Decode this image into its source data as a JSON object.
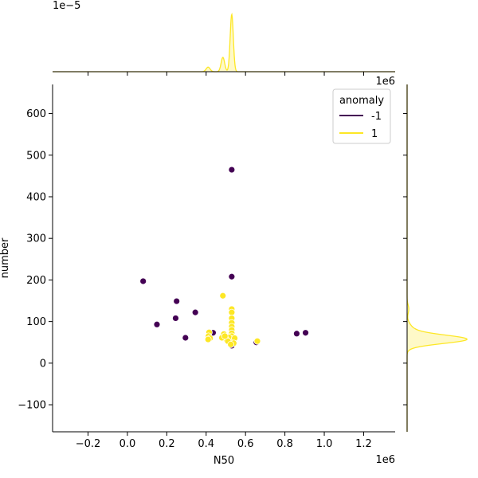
{
  "chart_data": {
    "type": "scatter",
    "title": "",
    "xlabel": "N50",
    "ylabel": "number",
    "x_offset_label": "1e6",
    "top_marginal_offset_label": "1e−5",
    "right_marginal_offset_label": "1e6",
    "xlim": [
      -380000,
      1360000
    ],
    "ylim": [
      -165,
      670
    ],
    "xticks": [
      -0.2,
      0.0,
      0.2,
      0.4,
      0.6,
      0.8,
      1.0,
      1.2
    ],
    "xtick_labels": [
      "−0.2",
      "0.0",
      "0.2",
      "0.4",
      "0.6",
      "0.8",
      "1.0",
      "1.2"
    ],
    "yticks": [
      -100,
      0,
      100,
      200,
      300,
      400,
      500,
      600
    ],
    "ytick_labels": [
      "−100",
      "0",
      "100",
      "200",
      "300",
      "400",
      "500",
      "600"
    ],
    "grid": false,
    "legend": {
      "title": "anomaly",
      "location": "upper right",
      "entries": [
        {
          "label": "-1",
          "color": "#440154"
        },
        {
          "label": "1",
          "color": "#fde725"
        }
      ]
    },
    "series": [
      {
        "name": "-1",
        "color": "#440154",
        "points": [
          [
            80000,
            197
          ],
          [
            150000,
            93
          ],
          [
            245000,
            108
          ],
          [
            250000,
            149
          ],
          [
            295000,
            61
          ],
          [
            345000,
            122
          ],
          [
            435000,
            73
          ],
          [
            530000,
            465
          ],
          [
            530000,
            208
          ],
          [
            530000,
            42
          ],
          [
            655000,
            50
          ],
          [
            860000,
            71
          ],
          [
            905000,
            73
          ]
        ]
      },
      {
        "name": "1",
        "color": "#fde725",
        "points": [
          [
            485000,
            162
          ],
          [
            530000,
            130
          ],
          [
            530000,
            122
          ],
          [
            530000,
            108
          ],
          [
            530000,
            97
          ],
          [
            530000,
            88
          ],
          [
            530000,
            80
          ],
          [
            530000,
            72
          ],
          [
            530000,
            65
          ],
          [
            530000,
            58
          ],
          [
            520000,
            55
          ],
          [
            515000,
            62
          ],
          [
            545000,
            60
          ],
          [
            500000,
            58
          ],
          [
            510000,
            53
          ],
          [
            490000,
            70
          ],
          [
            480000,
            61
          ],
          [
            415000,
            74
          ],
          [
            412000,
            65
          ],
          [
            420000,
            60
          ],
          [
            410000,
            57
          ],
          [
            495000,
            65
          ],
          [
            540000,
            48
          ],
          [
            525000,
            45
          ],
          [
            660000,
            53
          ]
        ]
      }
    ],
    "marginal_x_kde": {
      "color": "#fde725",
      "peaks": [
        {
          "center": 410000,
          "height": 0.08,
          "width": 10000
        },
        {
          "center": 485000,
          "height": 0.25,
          "width": 9000
        },
        {
          "center": 530000,
          "height": 1.0,
          "width": 8000
        }
      ]
    },
    "marginal_y_kde": {
      "color": "#fde725",
      "peaks": [
        {
          "center": 57,
          "height": 1.0,
          "width": 10
        },
        {
          "center": 75,
          "height": 0.12,
          "width": 15
        },
        {
          "center": 130,
          "height": 0.03,
          "width": 10
        }
      ]
    }
  }
}
